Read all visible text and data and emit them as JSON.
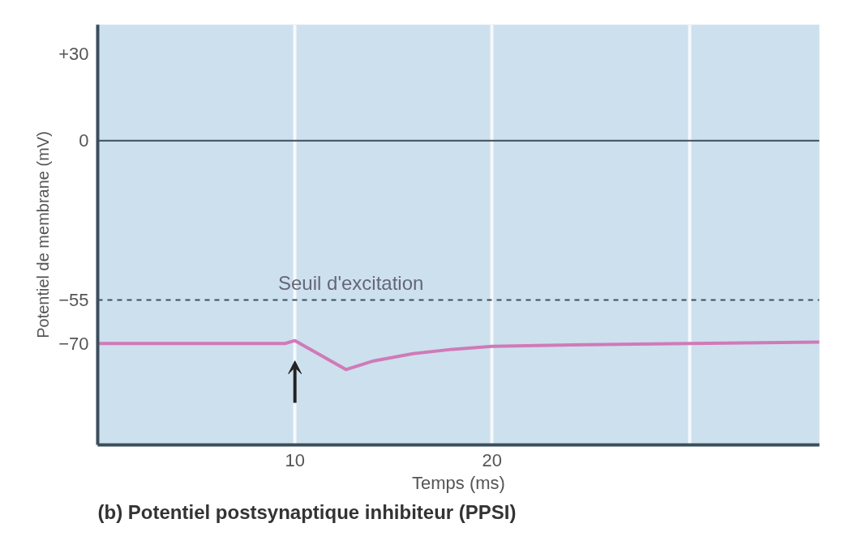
{
  "chart_data": {
    "type": "line",
    "title": "(b) Potentiel postsynaptique inhibiteur (PPSI)",
    "xlabel": "Temps (ms)",
    "ylabel": "Potentiel de membrane (mV)",
    "x": [
      0,
      9.5,
      10,
      12.6,
      14,
      16,
      18,
      20,
      24,
      30,
      36.6
    ],
    "series": [
      {
        "color": "#d07ab8",
        "values": [
          -70,
          -70,
          -69,
          -79,
          -76,
          -73.5,
          -72,
          -71,
          -70.5,
          -70,
          -69.5
        ]
      }
    ],
    "xlim": [
      0,
      36.6
    ],
    "ylim": [
      -105,
      40
    ],
    "xticks": [
      10,
      20,
      {
        "value": 30,
        "label": null
      }
    ],
    "yticks": [
      {
        "value": 30,
        "label": "+30"
      },
      0,
      -55,
      -70
    ],
    "ref_lines": [
      {
        "axis": "y",
        "value": 0,
        "color": "#3c4e5c",
        "line_style": "solid"
      },
      {
        "axis": "y",
        "value": -55,
        "label": "Seuil d'excitation",
        "color": "#3c4e5c",
        "line_style": "dashed"
      }
    ],
    "grid": "x",
    "line_style": "solid"
  }
}
